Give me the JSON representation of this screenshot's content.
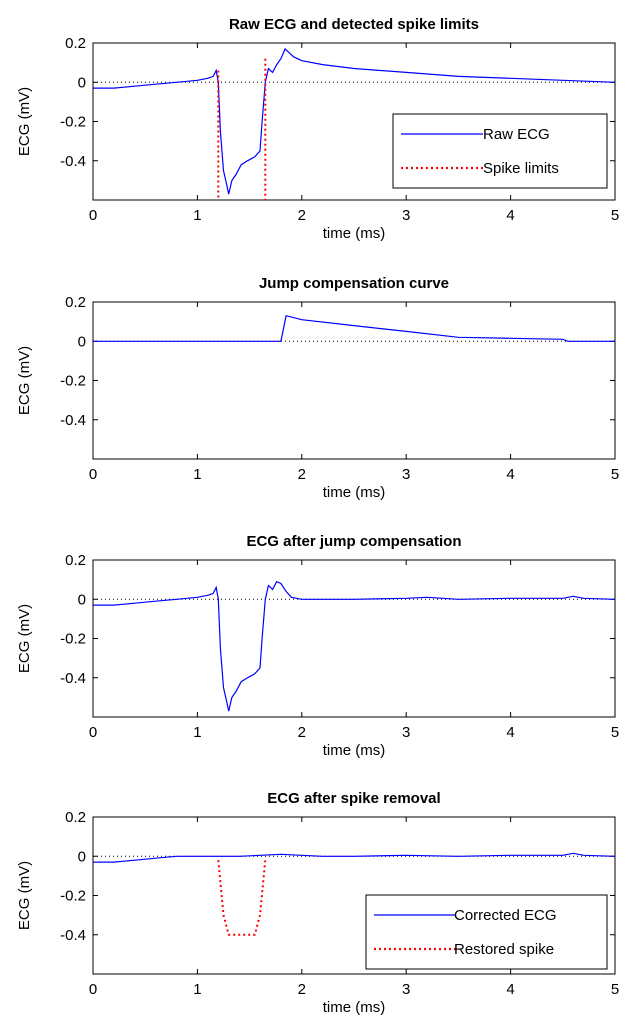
{
  "chart_data": [
    {
      "type": "line",
      "title": "Raw ECG and detected spike limits",
      "xlabel": "time (ms)",
      "ylabel": "ECG (mV)",
      "xlim": [
        0,
        5
      ],
      "ylim": [
        -0.6,
        0.2
      ],
      "xticks": [
        0,
        1,
        2,
        3,
        4,
        5
      ],
      "yticks": [
        0.2,
        0,
        -0.2,
        -0.4
      ],
      "xtick_labels": [
        "0",
        "1",
        "2",
        "3",
        "4",
        "5"
      ],
      "ytick_labels": [
        "0.2",
        "0",
        "-0.2",
        "-0.4"
      ],
      "zero_line": true,
      "legend": {
        "placement": "bottom-right",
        "entries": [
          {
            "label": "Raw ECG",
            "style": "solid",
            "color": "#0000ff"
          },
          {
            "label": "Spike limits",
            "style": "dotted",
            "color": "#ff0000"
          }
        ]
      },
      "series": [
        {
          "name": "Raw ECG",
          "color": "#0000ff",
          "style": "solid",
          "x": [
            0,
            0.2,
            0.4,
            0.6,
            0.8,
            1.0,
            1.1,
            1.15,
            1.18,
            1.2,
            1.22,
            1.25,
            1.28,
            1.3,
            1.33,
            1.37,
            1.42,
            1.48,
            1.55,
            1.6,
            1.62,
            1.65,
            1.68,
            1.72,
            1.76,
            1.8,
            1.84,
            1.88,
            1.92,
            2.0,
            2.2,
            2.5,
            3.0,
            3.5,
            4.0,
            4.5,
            5.0
          ],
          "y": [
            -0.03,
            -0.03,
            -0.02,
            -0.01,
            0.0,
            0.01,
            0.02,
            0.03,
            0.06,
            0.0,
            -0.25,
            -0.45,
            -0.52,
            -0.57,
            -0.5,
            -0.47,
            -0.42,
            -0.4,
            -0.38,
            -0.35,
            -0.2,
            0.0,
            0.07,
            0.05,
            0.09,
            0.12,
            0.17,
            0.15,
            0.13,
            0.11,
            0.09,
            0.07,
            0.05,
            0.03,
            0.02,
            0.01,
            0.0
          ]
        },
        {
          "name": "Spike limits",
          "color": "#ff0000",
          "style": "dotted",
          "x": [
            1.2,
            1.2,
            null,
            1.65,
            1.65
          ],
          "y": [
            0.06,
            -0.6,
            null,
            0.12,
            -0.6
          ]
        }
      ]
    },
    {
      "type": "line",
      "title": "Jump compensation curve",
      "xlabel": "time (ms)",
      "ylabel": "ECG (mV)",
      "xlim": [
        0,
        5
      ],
      "ylim": [
        -0.6,
        0.2
      ],
      "xticks": [
        0,
        1,
        2,
        3,
        4,
        5
      ],
      "yticks": [
        0.2,
        0,
        -0.2,
        -0.4
      ],
      "xtick_labels": [
        "0",
        "1",
        "2",
        "3",
        "4",
        "5"
      ],
      "ytick_labels": [
        "0.2",
        "0",
        "-0.2",
        "-0.4"
      ],
      "zero_line": true,
      "series": [
        {
          "color": "#0000ff",
          "style": "solid",
          "x": [
            0,
            1.8,
            1.85,
            2.0,
            2.5,
            3.0,
            3.5,
            4.0,
            4.5,
            4.55,
            5.0
          ],
          "y": [
            0.0,
            0.0,
            0.13,
            0.11,
            0.08,
            0.05,
            0.02,
            0.015,
            0.01,
            0.0,
            0.0
          ]
        }
      ]
    },
    {
      "type": "line",
      "title": "ECG after jump compensation",
      "xlabel": "time (ms)",
      "ylabel": "ECG (mV)",
      "xlim": [
        0,
        5
      ],
      "ylim": [
        -0.6,
        0.2
      ],
      "xticks": [
        0,
        1,
        2,
        3,
        4,
        5
      ],
      "yticks": [
        0.2,
        0,
        -0.2,
        -0.4
      ],
      "xtick_labels": [
        "0",
        "1",
        "2",
        "3",
        "4",
        "5"
      ],
      "ytick_labels": [
        "0.2",
        "0",
        "-0.2",
        "-0.4"
      ],
      "zero_line": true,
      "series": [
        {
          "color": "#0000ff",
          "style": "solid",
          "x": [
            0,
            0.2,
            0.4,
            0.6,
            0.8,
            1.0,
            1.1,
            1.15,
            1.18,
            1.2,
            1.22,
            1.25,
            1.28,
            1.3,
            1.33,
            1.37,
            1.42,
            1.48,
            1.55,
            1.6,
            1.62,
            1.65,
            1.68,
            1.72,
            1.76,
            1.8,
            1.85,
            1.9,
            2.0,
            2.2,
            2.5,
            3.0,
            3.2,
            3.5,
            4.0,
            4.5,
            4.6,
            4.7,
            5.0
          ],
          "y": [
            -0.03,
            -0.03,
            -0.02,
            -0.01,
            0.0,
            0.01,
            0.02,
            0.03,
            0.06,
            0.0,
            -0.25,
            -0.45,
            -0.52,
            -0.57,
            -0.5,
            -0.47,
            -0.42,
            -0.4,
            -0.38,
            -0.35,
            -0.2,
            0.0,
            0.07,
            0.05,
            0.09,
            0.08,
            0.04,
            0.01,
            0.0,
            0.0,
            0.0,
            0.005,
            0.01,
            0.0,
            0.005,
            0.005,
            0.015,
            0.005,
            0.0
          ]
        }
      ]
    },
    {
      "type": "line",
      "title": "ECG after spike removal",
      "xlabel": "time (ms)",
      "ylabel": "ECG (mV)",
      "xlim": [
        0,
        5
      ],
      "ylim": [
        -0.6,
        0.2
      ],
      "xticks": [
        0,
        1,
        2,
        3,
        4,
        5
      ],
      "yticks": [
        0.2,
        0,
        -0.2,
        -0.4
      ],
      "xtick_labels": [
        "0",
        "1",
        "2",
        "3",
        "4",
        "5"
      ],
      "ytick_labels": [
        "0.2",
        "0",
        "-0.2",
        "-0.4"
      ],
      "zero_line": true,
      "legend": {
        "placement": "bottom-right",
        "entries": [
          {
            "label": "Corrected ECG",
            "style": "solid",
            "color": "#0000ff"
          },
          {
            "label": "Restored spike",
            "style": "dotted",
            "color": "#ff0000"
          }
        ]
      },
      "series": [
        {
          "name": "Corrected ECG",
          "color": "#0000ff",
          "style": "solid",
          "x": [
            0,
            0.2,
            0.4,
            0.6,
            0.8,
            1.0,
            1.2,
            1.4,
            1.6,
            1.8,
            2.0,
            2.2,
            2.5,
            3.0,
            3.5,
            4.0,
            4.5,
            4.6,
            4.7,
            5.0
          ],
          "y": [
            -0.03,
            -0.03,
            -0.02,
            -0.01,
            0.0,
            0.0,
            0.0,
            0.0,
            0.005,
            0.01,
            0.005,
            0.0,
            0.0,
            0.005,
            0.0,
            0.005,
            0.005,
            0.015,
            0.005,
            0.0
          ]
        },
        {
          "name": "Restored spike",
          "color": "#ff0000",
          "style": "dotted",
          "x": [
            1.2,
            1.25,
            1.3,
            1.55,
            1.6,
            1.65
          ],
          "y": [
            -0.02,
            -0.3,
            -0.4,
            -0.4,
            -0.3,
            -0.02
          ]
        }
      ]
    }
  ]
}
